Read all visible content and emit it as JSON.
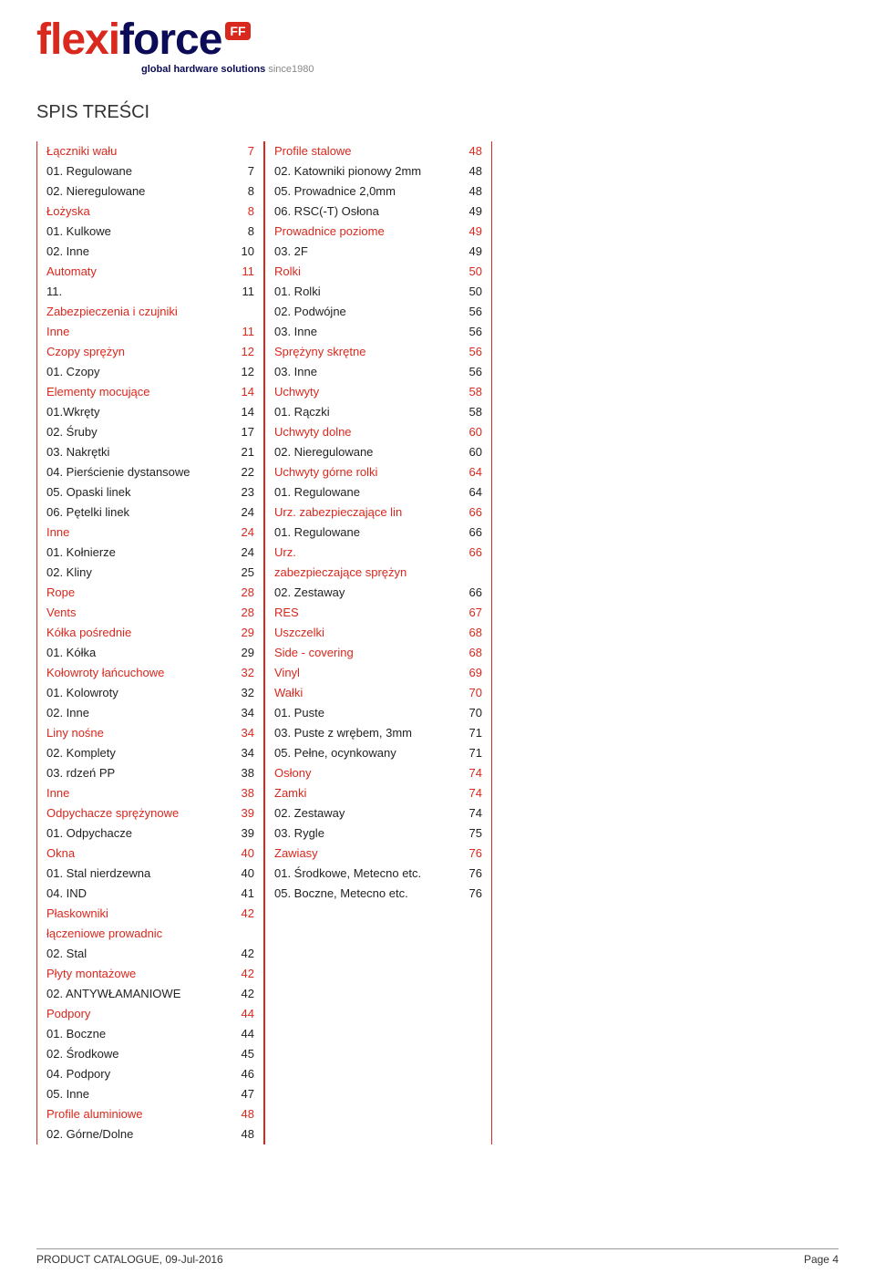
{
  "logo": {
    "part1": "flexi",
    "part2": "force",
    "badge": "FF",
    "tagline_main": "global hardware solutions ",
    "tagline_since": "since1980"
  },
  "title": "SPIS TREŚCI",
  "footer": {
    "left": "PRODUCT CATALOGUE, 09-Jul-2016",
    "right": "Page 4"
  },
  "col1": [
    {
      "label": "Łączniki wału",
      "page": "7",
      "sec": true
    },
    {
      "label": "01. Regulowane",
      "page": "7",
      "sec": false
    },
    {
      "label": "02. Nieregulowane",
      "page": "8",
      "sec": false
    },
    {
      "label": "Łożyska",
      "page": "8",
      "sec": true
    },
    {
      "label": "01. Kulkowe",
      "page": "8",
      "sec": false
    },
    {
      "label": "02. Inne",
      "page": "10",
      "sec": false
    },
    {
      "label": "Automaty",
      "page": "11",
      "sec": true
    },
    {
      "label": "11.",
      "page": "11",
      "sec": false
    },
    {
      "label": "Zabezpieczenia i czujniki",
      "page": "",
      "sec": true
    },
    {
      "label": "Inne",
      "page": "11",
      "sec": true
    },
    {
      "label": "Czopy sprężyn",
      "page": "12",
      "sec": true
    },
    {
      "label": "01. Czopy",
      "page": "12",
      "sec": false
    },
    {
      "label": "Elementy mocujące",
      "page": "14",
      "sec": true
    },
    {
      "label": "01.Wkręty",
      "page": "14",
      "sec": false
    },
    {
      "label": "02. Śruby",
      "page": "17",
      "sec": false
    },
    {
      "label": "03. Nakrętki",
      "page": "21",
      "sec": false
    },
    {
      "label": "04. Pierścienie dystansowe",
      "page": "22",
      "sec": false
    },
    {
      "label": "05. Opaski linek",
      "page": "23",
      "sec": false
    },
    {
      "label": "06. Pętelki linek",
      "page": "24",
      "sec": false
    },
    {
      "label": "Inne",
      "page": "24",
      "sec": true
    },
    {
      "label": "01. Kołnierze",
      "page": "24",
      "sec": false
    },
    {
      "label": "02. Kliny",
      "page": "25",
      "sec": false
    },
    {
      "label": "Rope",
      "page": "28",
      "sec": true
    },
    {
      "label": "Vents",
      "page": "28",
      "sec": true
    },
    {
      "label": "Kółka pośrednie",
      "page": "29",
      "sec": true
    },
    {
      "label": "01. Kółka",
      "page": "29",
      "sec": false
    },
    {
      "label": "Kołowroty łańcuchowe",
      "page": "32",
      "sec": true
    },
    {
      "label": "01. Kolowroty",
      "page": "32",
      "sec": false
    },
    {
      "label": "02. Inne",
      "page": "34",
      "sec": false
    },
    {
      "label": "Liny nośne",
      "page": "34",
      "sec": true
    },
    {
      "label": "02. Komplety",
      "page": "34",
      "sec": false
    },
    {
      "label": "03. rdzeń PP",
      "page": "38",
      "sec": false
    },
    {
      "label": "Inne",
      "page": "38",
      "sec": true
    },
    {
      "label": "Odpychacze sprężynowe",
      "page": "39",
      "sec": true
    },
    {
      "label": "01. Odpychacze",
      "page": "39",
      "sec": false
    },
    {
      "label": "Okna",
      "page": "40",
      "sec": true
    },
    {
      "label": "01. Stal nierdzewna",
      "page": "40",
      "sec": false
    },
    {
      "label": "04. IND",
      "page": "41",
      "sec": false
    },
    {
      "label": "Płaskowniki",
      "page": "42",
      "sec": true
    },
    {
      "label": "łączeniowe prowadnic",
      "page": "",
      "sec": true
    },
    {
      "label": "02. Stal",
      "page": "42",
      "sec": false
    },
    {
      "label": "Płyty montażowe",
      "page": "42",
      "sec": true
    },
    {
      "label": "02. ANTYWŁAMANIOWE",
      "page": "42",
      "sec": false
    },
    {
      "label": "Podpory",
      "page": "44",
      "sec": true
    },
    {
      "label": "01. Boczne",
      "page": "44",
      "sec": false
    },
    {
      "label": "02. Środkowe",
      "page": "45",
      "sec": false
    },
    {
      "label": "04. Podpory",
      "page": "46",
      "sec": false
    },
    {
      "label": "05. Inne",
      "page": "47",
      "sec": false
    },
    {
      "label": "Profile aluminiowe",
      "page": "48",
      "sec": true
    },
    {
      "label": "02. Górne/Dolne",
      "page": "48",
      "sec": false
    }
  ],
  "col2": [
    {
      "label": "Profile stalowe",
      "page": "48",
      "sec": true
    },
    {
      "label": "02. Katowniki pionowy 2mm",
      "page": "48",
      "sec": false
    },
    {
      "label": "05. Prowadnice 2,0mm",
      "page": "48",
      "sec": false
    },
    {
      "label": "06. RSC(-T) Osłona",
      "page": "49",
      "sec": false
    },
    {
      "label": "Prowadnice poziome",
      "page": "49",
      "sec": true
    },
    {
      "label": "03. 2F",
      "page": "49",
      "sec": false
    },
    {
      "label": "Rolki",
      "page": "50",
      "sec": true
    },
    {
      "label": "01. Rolki",
      "page": "50",
      "sec": false
    },
    {
      "label": "02. Podwójne",
      "page": "56",
      "sec": false
    },
    {
      "label": "03. Inne",
      "page": "56",
      "sec": false
    },
    {
      "label": "Sprężyny skrętne",
      "page": "56",
      "sec": true
    },
    {
      "label": "03. Inne",
      "page": "56",
      "sec": false
    },
    {
      "label": "Uchwyty",
      "page": "58",
      "sec": true
    },
    {
      "label": "01. Rączki",
      "page": "58",
      "sec": false
    },
    {
      "label": "Uchwyty dolne",
      "page": "60",
      "sec": true
    },
    {
      "label": "02. Nieregulowane",
      "page": "60",
      "sec": false
    },
    {
      "label": "Uchwyty górne rolki",
      "page": "64",
      "sec": true
    },
    {
      "label": "01. Regulowane",
      "page": "64",
      "sec": false
    },
    {
      "label": "Urz. zabezpieczające lin",
      "page": "66",
      "sec": true
    },
    {
      "label": "01. Regulowane",
      "page": "66",
      "sec": false
    },
    {
      "label": "Urz.",
      "page": "66",
      "sec": true
    },
    {
      "label": "zabezpieczające sprężyn",
      "page": "",
      "sec": true
    },
    {
      "label": "02. Zestaway",
      "page": "66",
      "sec": false
    },
    {
      "label": "RES",
      "page": "67",
      "sec": true
    },
    {
      "label": "Uszczelki",
      "page": "68",
      "sec": true
    },
    {
      "label": "Side - covering",
      "page": "68",
      "sec": true
    },
    {
      "label": "Vinyl",
      "page": "69",
      "sec": true
    },
    {
      "label": "Wałki",
      "page": "70",
      "sec": true
    },
    {
      "label": "01. Puste",
      "page": "70",
      "sec": false
    },
    {
      "label": "03. Puste z wrębem, 3mm",
      "page": "71",
      "sec": false
    },
    {
      "label": "05. Pełne, ocynkowany",
      "page": "71",
      "sec": false
    },
    {
      "label": "Osłony",
      "page": "74",
      "sec": true
    },
    {
      "label": "Zamki",
      "page": "74",
      "sec": true
    },
    {
      "label": "02. Zestaway",
      "page": "74",
      "sec": false
    },
    {
      "label": "03. Rygle",
      "page": "75",
      "sec": false
    },
    {
      "label": "Zawiasy",
      "page": "76",
      "sec": true
    },
    {
      "label": "01. Środkowe, Metecno etc.",
      "page": "76",
      "sec": false
    },
    {
      "label": "05. Boczne, Metecno etc.",
      "page": "76",
      "sec": false
    }
  ]
}
